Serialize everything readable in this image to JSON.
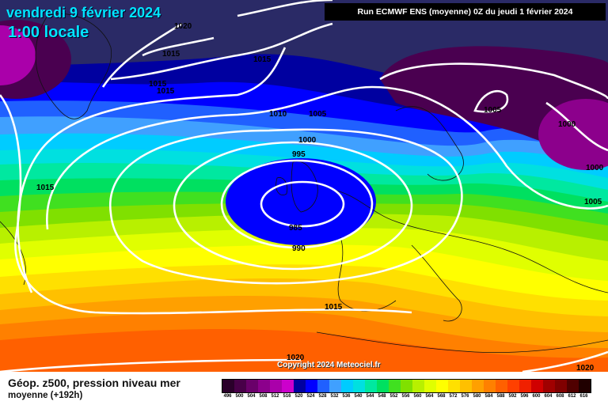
{
  "map": {
    "date": "vendredi 9 février 2024",
    "time": "1:00 locale",
    "run": "Run ECMWF ENS (moyenne) 0Z du jeudi 1 février 2024",
    "copyright": "Copyright 2024 Meteociel.fr",
    "isobars": [
      "1020",
      "1015",
      "1015",
      "1015",
      "1015",
      "1015",
      "1010",
      "1005",
      "1005",
      "1000",
      "1000",
      "1005",
      "1000",
      "995",
      "985",
      "990",
      "1015",
      "1020",
      "1020"
    ]
  },
  "legend": {
    "title": "Géop. z500, pression niveau mer",
    "subtitle": "moyenne   (+192h)",
    "labels": [
      "496",
      "500",
      "504",
      "508",
      "512",
      "516",
      "520",
      "524",
      "528",
      "532",
      "536",
      "540",
      "544",
      "548",
      "552",
      "556",
      "560",
      "564",
      "568",
      "572",
      "576",
      "580",
      "584",
      "588",
      "592",
      "596",
      "600",
      "604",
      "608",
      "612",
      "616"
    ],
    "colors": [
      "#2a002a",
      "#480048",
      "#6a006a",
      "#8c008c",
      "#aa00aa",
      "#cc00cc",
      "#0000a0",
      "#0000ff",
      "#2060ff",
      "#40a0ff",
      "#00ccff",
      "#00e0e0",
      "#00e8a0",
      "#00e060",
      "#40e020",
      "#80e000",
      "#b8f000",
      "#e0ff00",
      "#ffff00",
      "#ffe000",
      "#ffc000",
      "#ffa000",
      "#ff8000",
      "#ff6000",
      "#ff4000",
      "#f02000",
      "#d00000",
      "#a00000",
      "#800000",
      "#500000",
      "#200000"
    ]
  }
}
